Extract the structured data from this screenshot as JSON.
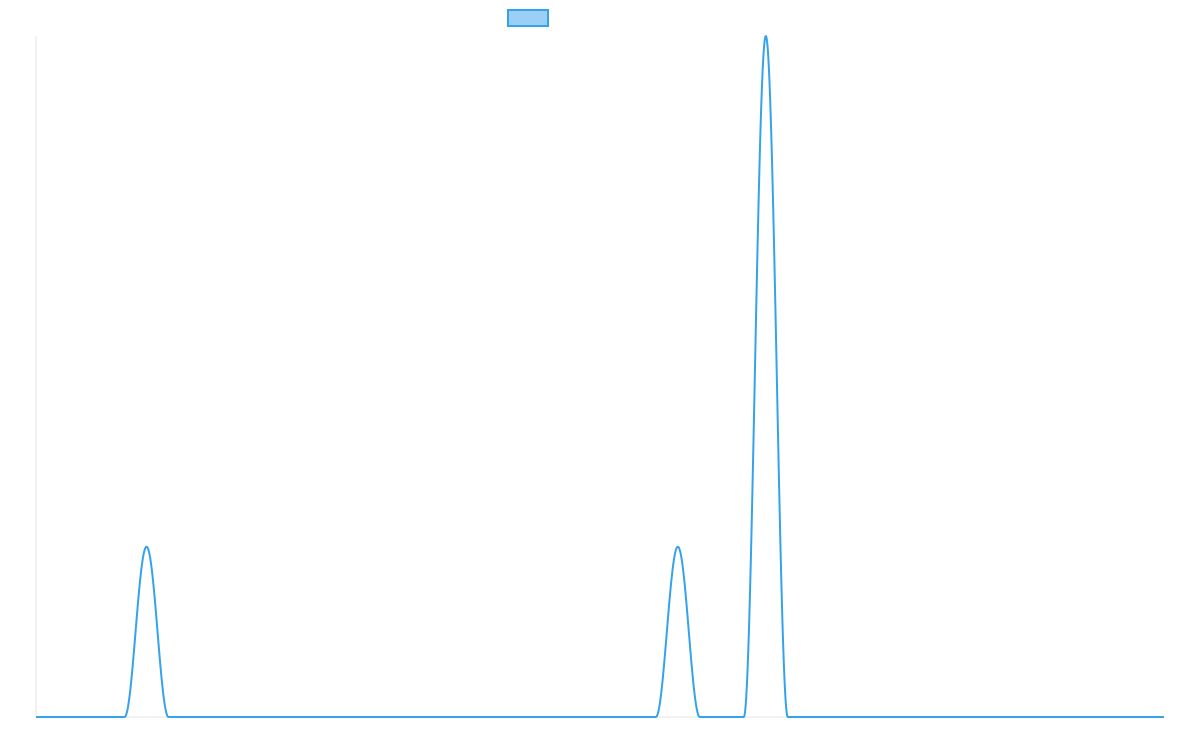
{
  "chart_data": {
    "type": "line",
    "title": "",
    "xlabel": "",
    "ylabel": "",
    "legend": {
      "placement": "top-center",
      "entries": [
        {
          "label": "",
          "color": "#36a2eb",
          "fill": "#9ad0f5"
        }
      ]
    },
    "axes_visible": false,
    "grid": false,
    "xlim": [
      0,
      1
    ],
    "ylim": [
      0,
      1
    ],
    "series": [
      {
        "color": "#36a2eb",
        "peaks": [
          {
            "x": 0.098,
            "height": 0.25,
            "half_width": 0.0195
          },
          {
            "x": 0.569,
            "height": 0.25,
            "half_width": 0.0195
          },
          {
            "x": 0.647,
            "height": 1.0,
            "half_width": 0.0195
          }
        ]
      }
    ]
  }
}
